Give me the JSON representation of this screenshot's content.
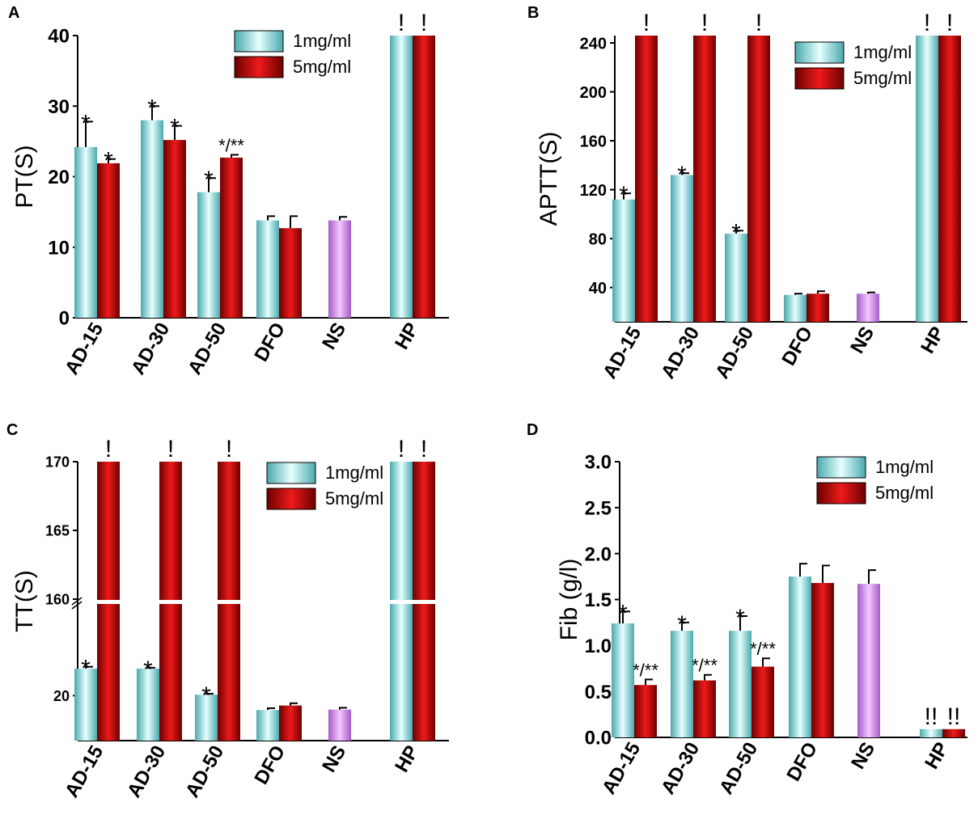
{
  "figure": {
    "colors": {
      "series_1mg": "#7fe3e3",
      "series_5mg": "#cc1111",
      "ns": "#cc88e6",
      "axis": "#000000"
    }
  },
  "chart_data": [
    {
      "panel": "A",
      "type": "bar",
      "ylabel": "PT(S)",
      "ylim": [
        0,
        40
      ],
      "yticks": [
        0,
        10,
        20,
        30,
        40
      ],
      "legend": {
        "placement": "top-right",
        "labels": [
          "1mg/ml",
          "5mg/ml"
        ]
      },
      "categories": [
        "AD-15",
        "AD-30",
        "AD-50",
        "DFO",
        "NS",
        "HP"
      ],
      "series": [
        {
          "name": "1mg/ml",
          "values": [
            24.2,
            28.0,
            17.8,
            13.8,
            null,
            40
          ],
          "errors": [
            3.6,
            2.0,
            2.0,
            0.6,
            null,
            0
          ]
        },
        {
          "name": "5mg/ml",
          "values": [
            21.9,
            25.2,
            22.7,
            12.7,
            null,
            40
          ],
          "errors": [
            0.6,
            2.0,
            0.4,
            1.7,
            null,
            0
          ]
        },
        {
          "name": "NS",
          "values": [
            null,
            null,
            null,
            null,
            13.8,
            null
          ],
          "errors": [
            null,
            null,
            null,
            null,
            0.5,
            null
          ]
        }
      ],
      "annotations": [
        {
          "category": "AD-15",
          "series": "1mg/ml",
          "text": "*"
        },
        {
          "category": "AD-15",
          "series": "5mg/ml",
          "text": "*"
        },
        {
          "category": "AD-30",
          "series": "1mg/ml",
          "text": "*"
        },
        {
          "category": "AD-30",
          "series": "5mg/ml",
          "text": "*"
        },
        {
          "category": "AD-50",
          "series": "1mg/ml",
          "text": "*"
        },
        {
          "category": "AD-50",
          "series": "5mg/ml",
          "text": "*/**"
        },
        {
          "category": "HP",
          "series": "1mg/ml",
          "text": "!"
        },
        {
          "category": "HP",
          "series": "5mg/ml",
          "text": "!"
        }
      ]
    },
    {
      "panel": "B",
      "type": "bar",
      "ylabel": "APTT(S)",
      "ylim": [
        12,
        246
      ],
      "yticks": [
        40,
        80,
        120,
        160,
        200,
        240
      ],
      "legend": {
        "placement": "top-right",
        "labels": [
          "1mg/ml",
          "5mg/ml"
        ]
      },
      "categories": [
        "AD-15",
        "AD-30",
        "AD-50",
        "DFO",
        "NS",
        "HP"
      ],
      "series": [
        {
          "name": "1mg/ml",
          "values": [
            112,
            132,
            84,
            34,
            null,
            246
          ],
          "errors": [
            5,
            1.5,
            2.5,
            1,
            null,
            0
          ]
        },
        {
          "name": "5mg/ml",
          "values": [
            246,
            246,
            246,
            35,
            null,
            246
          ],
          "errors": [
            0,
            0,
            0,
            2,
            null,
            0
          ]
        },
        {
          "name": "NS",
          "values": [
            null,
            null,
            null,
            null,
            35,
            null
          ],
          "errors": [
            null,
            null,
            null,
            null,
            1,
            null
          ]
        }
      ],
      "annotations": [
        {
          "category": "AD-15",
          "series": "1mg/ml",
          "text": "*"
        },
        {
          "category": "AD-15",
          "series": "5mg/ml",
          "text": "!"
        },
        {
          "category": "AD-30",
          "series": "1mg/ml",
          "text": "*"
        },
        {
          "category": "AD-30",
          "series": "5mg/ml",
          "text": "!"
        },
        {
          "category": "AD-50",
          "series": "1mg/ml",
          "text": "*"
        },
        {
          "category": "AD-50",
          "series": "5mg/ml",
          "text": "!"
        },
        {
          "category": "HP",
          "series": "1mg/ml",
          "text": "!"
        },
        {
          "category": "HP",
          "series": "5mg/ml",
          "text": "!"
        }
      ]
    },
    {
      "panel": "C",
      "type": "bar",
      "ylabel": "TT(S)",
      "axis_break": true,
      "lower_segment": {
        "ylim": [
          10,
          40
        ],
        "yticks": [
          20
        ]
      },
      "upper_segment": {
        "ylim": [
          160,
          170
        ],
        "yticks": [
          160,
          165,
          170
        ]
      },
      "legend": {
        "placement": "top-right",
        "labels": [
          "1mg/ml",
          "5mg/ml"
        ]
      },
      "categories": [
        "AD-15",
        "AD-30",
        "AD-50",
        "DFO",
        "NS",
        "HP"
      ],
      "series": [
        {
          "name": "1mg/ml",
          "values": [
            26,
            26,
            20.2,
            16.8,
            null,
            170
          ],
          "errors": [
            0.4,
            0.2,
            0.2,
            0.4,
            null,
            0
          ]
        },
        {
          "name": "5mg/ml",
          "values": [
            170,
            170,
            170,
            17.8,
            null,
            170
          ],
          "errors": [
            0,
            0,
            0,
            0.5,
            null,
            0
          ]
        },
        {
          "name": "NS",
          "values": [
            null,
            null,
            null,
            null,
            16.9,
            null
          ],
          "errors": [
            null,
            null,
            null,
            null,
            0.4,
            null
          ]
        }
      ],
      "annotations": [
        {
          "category": "AD-15",
          "series": "1mg/ml",
          "text": "*"
        },
        {
          "category": "AD-15",
          "series": "5mg/ml",
          "text": "!"
        },
        {
          "category": "AD-30",
          "series": "1mg/ml",
          "text": "*"
        },
        {
          "category": "AD-30",
          "series": "5mg/ml",
          "text": "!"
        },
        {
          "category": "AD-50",
          "series": "1mg/ml",
          "text": "*"
        },
        {
          "category": "AD-50",
          "series": "5mg/ml",
          "text": "!"
        },
        {
          "category": "HP",
          "series": "1mg/ml",
          "text": "!"
        },
        {
          "category": "HP",
          "series": "5mg/ml",
          "text": "!"
        }
      ]
    },
    {
      "panel": "D",
      "type": "bar",
      "ylabel": "Fib (g/l)",
      "ylim": [
        0,
        3.0
      ],
      "yticks": [
        "0.0",
        "0.5",
        "1.0",
        "1.5",
        "2.0",
        "2.5",
        "3.0"
      ],
      "legend": {
        "placement": "top-right",
        "labels": [
          "1mg/ml",
          "5mg/ml"
        ]
      },
      "categories": [
        "AD-15",
        "AD-30",
        "AD-50",
        "DFO",
        "NS",
        "HP"
      ],
      "series": [
        {
          "name": "1mg/ml",
          "values": [
            1.24,
            1.16,
            1.16,
            1.75,
            null,
            0.09
          ],
          "errors": [
            0.13,
            0.09,
            0.16,
            0.14,
            null,
            0
          ]
        },
        {
          "name": "5mg/ml",
          "values": [
            0.57,
            0.62,
            0.77,
            1.68,
            null,
            0.09
          ],
          "errors": [
            0.06,
            0.06,
            0.09,
            0.19,
            null,
            0
          ]
        },
        {
          "name": "NS",
          "values": [
            null,
            null,
            null,
            null,
            1.67,
            null
          ],
          "errors": [
            null,
            null,
            null,
            null,
            0.15,
            null
          ]
        }
      ],
      "annotations": [
        {
          "category": "AD-15",
          "series": "1mg/ml",
          "text": "*"
        },
        {
          "category": "AD-15",
          "series": "5mg/ml",
          "text": "*/**"
        },
        {
          "category": "AD-30",
          "series": "1mg/ml",
          "text": "*"
        },
        {
          "category": "AD-30",
          "series": "5mg/ml",
          "text": "*/**"
        },
        {
          "category": "AD-50",
          "series": "1mg/ml",
          "text": "*"
        },
        {
          "category": "AD-50",
          "series": "5mg/ml",
          "text": "*/**"
        },
        {
          "category": "HP",
          "series": "1mg/ml",
          "text": "!!"
        },
        {
          "category": "HP",
          "series": "5mg/ml",
          "text": "!!"
        }
      ]
    }
  ]
}
